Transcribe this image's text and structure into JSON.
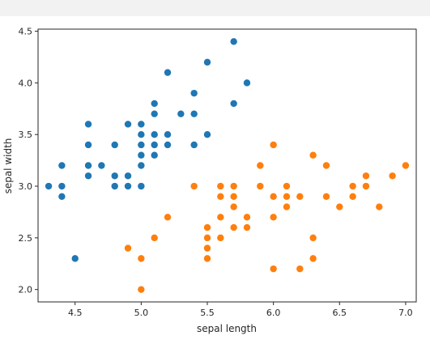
{
  "chart_data": {
    "type": "scatter",
    "title": "",
    "xlabel": "sepal length",
    "ylabel": "sepal width",
    "xlim": [
      4.22,
      7.08
    ],
    "ylim": [
      1.88,
      4.52
    ],
    "xticks": [
      4.5,
      5.0,
      5.5,
      6.0,
      6.5,
      7.0
    ],
    "xtick_labels": [
      "4.5",
      "5.0",
      "5.5",
      "6.0",
      "6.5",
      "7.0"
    ],
    "yticks": [
      2.0,
      2.5,
      3.0,
      3.5,
      4.0,
      4.5
    ],
    "ytick_labels": [
      "2.0",
      "2.5",
      "3.0",
      "3.5",
      "4.0",
      "4.5"
    ],
    "grid": false,
    "legend": "none",
    "series": [
      {
        "color": "#1f77b4",
        "points": [
          [
            4.3,
            3.0
          ],
          [
            4.4,
            2.9
          ],
          [
            4.4,
            3.0
          ],
          [
            4.4,
            3.2
          ],
          [
            4.5,
            2.3
          ],
          [
            4.6,
            3.1
          ],
          [
            4.6,
            3.2
          ],
          [
            4.6,
            3.4
          ],
          [
            4.6,
            3.6
          ],
          [
            4.7,
            3.2
          ],
          [
            4.8,
            3.0
          ],
          [
            4.8,
            3.1
          ],
          [
            4.8,
            3.4
          ],
          [
            4.9,
            3.0
          ],
          [
            4.9,
            3.1
          ],
          [
            4.9,
            3.6
          ],
          [
            5.0,
            3.0
          ],
          [
            5.0,
            3.2
          ],
          [
            5.0,
            3.3
          ],
          [
            5.0,
            3.4
          ],
          [
            5.0,
            3.5
          ],
          [
            5.0,
            3.6
          ],
          [
            5.1,
            3.3
          ],
          [
            5.1,
            3.4
          ],
          [
            5.1,
            3.5
          ],
          [
            5.1,
            3.7
          ],
          [
            5.1,
            3.8
          ],
          [
            5.2,
            3.4
          ],
          [
            5.2,
            3.5
          ],
          [
            5.2,
            4.1
          ],
          [
            5.3,
            3.7
          ],
          [
            5.4,
            3.4
          ],
          [
            5.4,
            3.7
          ],
          [
            5.4,
            3.9
          ],
          [
            5.5,
            3.5
          ],
          [
            5.5,
            4.2
          ],
          [
            5.7,
            3.8
          ],
          [
            5.7,
            4.4
          ],
          [
            5.8,
            4.0
          ]
        ]
      },
      {
        "color": "#ff7f0e",
        "points": [
          [
            4.9,
            2.4
          ],
          [
            5.0,
            2.0
          ],
          [
            5.0,
            2.3
          ],
          [
            5.1,
            2.5
          ],
          [
            5.2,
            2.7
          ],
          [
            5.4,
            3.0
          ],
          [
            5.5,
            2.3
          ],
          [
            5.5,
            2.4
          ],
          [
            5.5,
            2.5
          ],
          [
            5.5,
            2.6
          ],
          [
            5.6,
            2.5
          ],
          [
            5.6,
            2.7
          ],
          [
            5.6,
            2.9
          ],
          [
            5.6,
            3.0
          ],
          [
            5.7,
            2.6
          ],
          [
            5.7,
            2.8
          ],
          [
            5.7,
            2.9
          ],
          [
            5.7,
            3.0
          ],
          [
            5.8,
            2.6
          ],
          [
            5.8,
            2.7
          ],
          [
            5.9,
            3.0
          ],
          [
            5.9,
            3.2
          ],
          [
            6.0,
            2.2
          ],
          [
            6.0,
            2.7
          ],
          [
            6.0,
            2.9
          ],
          [
            6.0,
            3.4
          ],
          [
            6.1,
            2.8
          ],
          [
            6.1,
            2.9
          ],
          [
            6.1,
            3.0
          ],
          [
            6.2,
            2.2
          ],
          [
            6.2,
            2.9
          ],
          [
            6.3,
            2.3
          ],
          [
            6.3,
            2.5
          ],
          [
            6.3,
            3.3
          ],
          [
            6.4,
            2.9
          ],
          [
            6.4,
            3.2
          ],
          [
            6.5,
            2.8
          ],
          [
            6.6,
            2.9
          ],
          [
            6.6,
            3.0
          ],
          [
            6.7,
            3.0
          ],
          [
            6.7,
            3.1
          ],
          [
            6.8,
            2.8
          ],
          [
            6.9,
            3.1
          ],
          [
            7.0,
            3.2
          ]
        ]
      }
    ]
  }
}
